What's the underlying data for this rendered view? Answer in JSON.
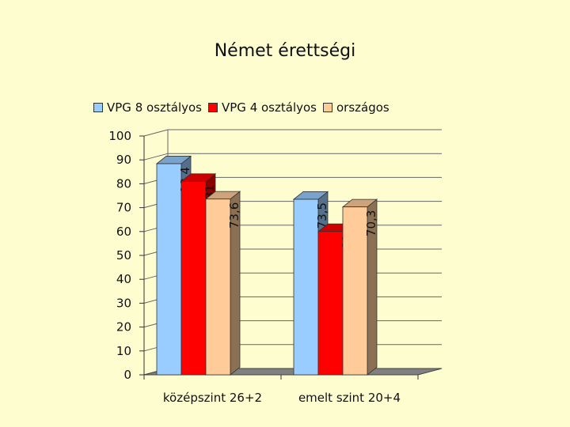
{
  "chart_data": {
    "type": "bar",
    "title": "Német érettségi",
    "categories": [
      "középszint 26+2",
      "emelt szint 20+4"
    ],
    "series": [
      {
        "name": "VPG 8 osztályos",
        "values": [
          88.4,
          73.5
        ],
        "labels": [
          "88,4",
          "73,5"
        ],
        "color": "#99ccff"
      },
      {
        "name": "VPG 4 osztályos",
        "values": [
          81,
          60
        ],
        "labels": [
          "81",
          "60"
        ],
        "color": "#ff0000"
      },
      {
        "name": "országos",
        "values": [
          73.6,
          70.3
        ],
        "labels": [
          "73,6",
          "70,3"
        ],
        "color": "#ffcc99"
      }
    ],
    "ylim": [
      0,
      100
    ],
    "yticks": [
      0,
      10,
      20,
      30,
      40,
      50,
      60,
      70,
      80,
      90,
      100
    ],
    "grid": true,
    "legend_position": "top",
    "style": "3d"
  }
}
